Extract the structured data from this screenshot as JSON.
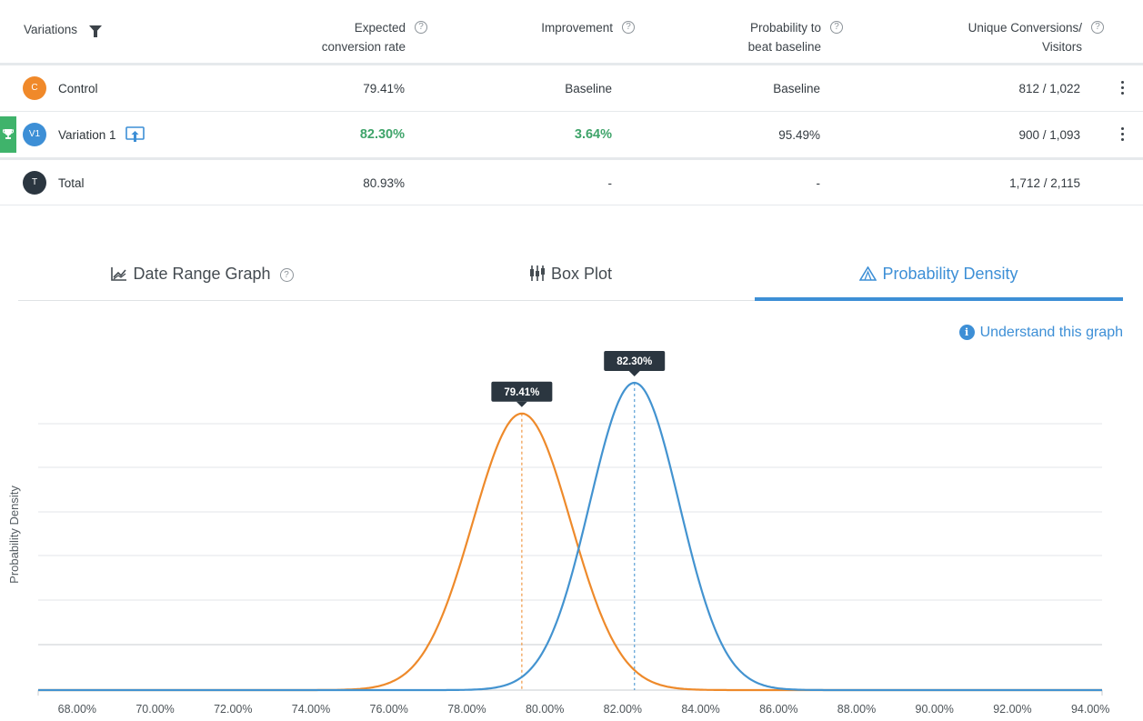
{
  "table": {
    "headers": {
      "variations": "Variations",
      "expected_line1": "Expected",
      "expected_line2": "conversion rate",
      "improvement": "Improvement",
      "probability_line1": "Probability to",
      "probability_line2": "beat baseline",
      "unique_line1": "Unique Conversions/",
      "unique_line2": "Visitors",
      "help_glyph": "?"
    },
    "rows": [
      {
        "badge": "C",
        "badge_color": "#f0892a",
        "name": "Control",
        "rate": "79.41%",
        "improvement": "Baseline",
        "probability": "Baseline",
        "conversions": "812 / 1,022"
      },
      {
        "badge": "V1",
        "badge_color": "#3d8fd6",
        "name": "Variation 1",
        "rate": "82.30%",
        "improvement": "3.64%",
        "probability": "95.49%",
        "conversions": "900 / 1,093",
        "winner": true
      },
      {
        "badge": "T",
        "badge_color": "#2b3640",
        "name": "Total",
        "rate": "80.93%",
        "improvement": "-",
        "probability": "-",
        "conversions": "1,712 / 2,115"
      }
    ]
  },
  "tabs": [
    {
      "label": "Date Range Graph",
      "icon": "line-chart-icon",
      "help": "?"
    },
    {
      "label": "Box Plot",
      "icon": "box-plot-icon"
    },
    {
      "label": "Probability Density",
      "icon": "density-icon",
      "active": true
    }
  ],
  "understand_link": {
    "label": "Understand this graph",
    "icon_glyph": "i"
  },
  "colors": {
    "control": "#ee8a2b",
    "variation": "#4393d0",
    "accent": "#3d8fd6",
    "winner": "#3fb36b"
  },
  "chart_data": {
    "type": "line",
    "ylabel": "Probability Density",
    "xlim": [
      67.0,
      94.3
    ],
    "x_ticks": [
      "68.00%",
      "70.00%",
      "72.00%",
      "74.00%",
      "76.00%",
      "78.00%",
      "80.00%",
      "82.00%",
      "84.00%",
      "86.00%",
      "88.00%",
      "90.00%",
      "92.00%",
      "94.00%"
    ],
    "x_tick_values": [
      68,
      70,
      72,
      74,
      76,
      78,
      80,
      82,
      84,
      86,
      88,
      90,
      92,
      94
    ],
    "grid": true,
    "series": [
      {
        "name": "Control",
        "mean": 79.41,
        "sd": 1.26,
        "peak_rel": 0.9,
        "marker_label": "79.41%",
        "color": "#ee8a2b"
      },
      {
        "name": "Variation 1",
        "mean": 82.3,
        "sd": 1.15,
        "peak_rel": 1.0,
        "marker_label": "82.30%",
        "color": "#4393d0"
      }
    ]
  }
}
